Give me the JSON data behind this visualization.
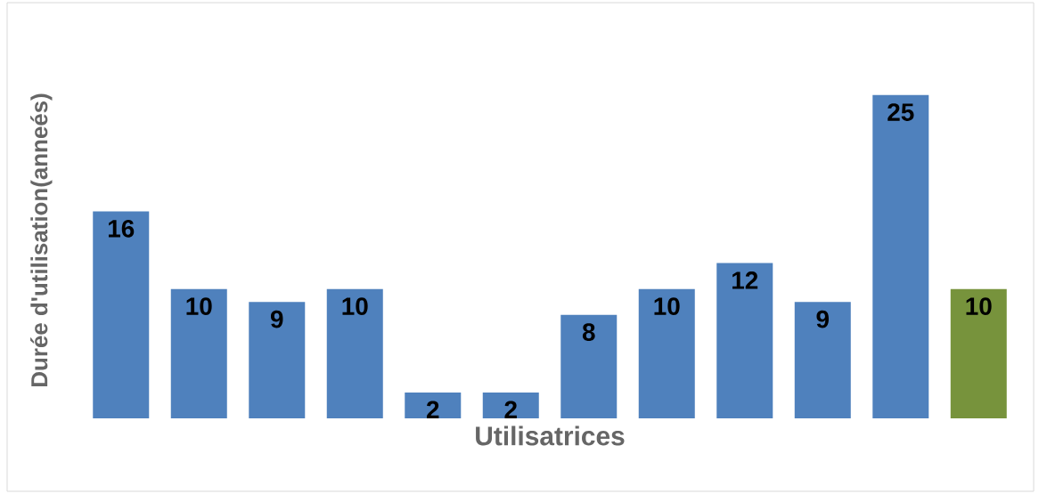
{
  "chart_data": {
    "type": "bar",
    "xlabel": "Utilisatrices",
    "ylabel": "Durée d'utilisation(anneés)",
    "categories": [
      null,
      null,
      null,
      null,
      null,
      null,
      null,
      null,
      null,
      null,
      null,
      null
    ],
    "values": [
      16,
      10,
      9,
      10,
      2,
      2,
      8,
      10,
      12,
      9,
      25,
      10
    ],
    "colors": [
      "#4f81bd",
      "#4f81bd",
      "#4f81bd",
      "#4f81bd",
      "#4f81bd",
      "#4f81bd",
      "#4f81bd",
      "#4f81bd",
      "#4f81bd",
      "#4f81bd",
      "#4f81bd",
      "#77933c"
    ],
    "data_labels": true
  }
}
